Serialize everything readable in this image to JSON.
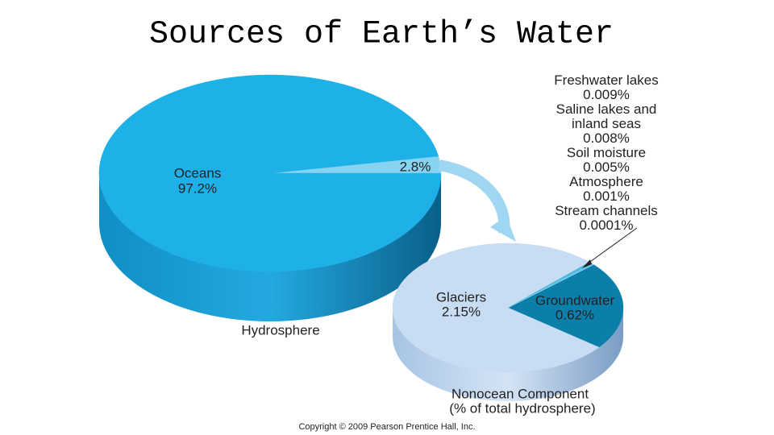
{
  "title": "Sources of Earth’s Water",
  "copyright": "Copyright © 2009 Pearson Prentice Hall, Inc.",
  "chart_data": [
    {
      "type": "pie",
      "title": "Hydrosphere",
      "categories": [
        null,
        "Oceans"
      ],
      "values": [
        2.8,
        97.2
      ],
      "value_labels": [
        "2.8%",
        "97.2%"
      ],
      "colors": [
        "#86d3f2",
        "#1eb1e8"
      ]
    },
    {
      "type": "pie",
      "title": "Nonocean Component",
      "subtitle": "(% of total hydrosphere)",
      "categories": [
        "Groundwater",
        "Glaciers",
        "Freshwater lakes",
        "Saline lakes and inland seas",
        "Soil moisture",
        "Atmosphere",
        "Stream channels"
      ],
      "values": [
        0.62,
        2.15,
        0.009,
        0.008,
        0.005,
        0.001,
        0.0001
      ],
      "value_labels": [
        "0.62%",
        "2.15%",
        "0.009%",
        "0.008%",
        "0.005%",
        "0.001%",
        "0.0001%"
      ],
      "colors": [
        "#0b7fa9",
        "#c8ddf3",
        "#45b4de",
        "#57bde3",
        "#6cc6e8",
        "#80cfec",
        "#94d7f0"
      ]
    }
  ]
}
